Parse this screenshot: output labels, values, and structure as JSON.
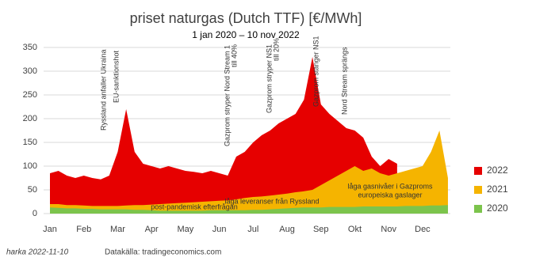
{
  "chart_data": {
    "type": "area",
    "title": "priset naturgas (Dutch TTF) [€/MWh]",
    "subtitle": "1 jan 2020 – 10 nov 2022",
    "categories": [
      "Jan",
      null,
      null,
      null,
      "Feb",
      null,
      null,
      null,
      "Mar",
      null,
      null,
      null,
      "Apr",
      null,
      null,
      null,
      "May",
      null,
      null,
      null,
      "Jun",
      null,
      null,
      null,
      "Jul",
      null,
      null,
      null,
      "Aug",
      null,
      null,
      null,
      "Sep",
      null,
      null,
      null,
      "Okt",
      null,
      null,
      null,
      "Nov",
      null,
      null,
      null,
      "Dec",
      null,
      null,
      null
    ],
    "series": [
      {
        "name": "2022",
        "color": "#e60000",
        "values": [
          85,
          90,
          80,
          75,
          80,
          75,
          72,
          80,
          130,
          220,
          130,
          105,
          100,
          95,
          100,
          95,
          90,
          88,
          85,
          90,
          85,
          80,
          120,
          130,
          150,
          165,
          175,
          190,
          200,
          210,
          240,
          330,
          230,
          210,
          195,
          180,
          175,
          160,
          120,
          100,
          115,
          105,
          null,
          null,
          null,
          null,
          null,
          null
        ]
      },
      {
        "name": "2021",
        "color": "#f5b400",
        "values": [
          20,
          20,
          18,
          18,
          17,
          16,
          16,
          16,
          16,
          17,
          18,
          18,
          19,
          20,
          21,
          22,
          23,
          24,
          25,
          26,
          27,
          28,
          30,
          33,
          35,
          36,
          38,
          40,
          42,
          45,
          47,
          50,
          60,
          70,
          80,
          90,
          100,
          90,
          95,
          85,
          80,
          85,
          90,
          95,
          100,
          130,
          175,
          75
        ]
      },
      {
        "name": "2020",
        "color": "#7cc44c",
        "values": [
          13,
          12,
          11,
          11,
          10,
          10,
          9,
          9,
          9,
          9,
          8,
          8,
          7,
          6,
          6,
          6,
          6,
          6,
          6,
          7,
          7,
          7,
          7,
          7,
          8,
          8,
          9,
          10,
          11,
          12,
          13,
          13,
          13,
          14,
          14,
          14,
          14,
          15,
          15,
          15,
          15,
          15,
          16,
          16,
          16,
          17,
          17,
          18
        ]
      }
    ],
    "ylim": [
      0,
      350
    ],
    "yticks": [
      0,
      50,
      100,
      150,
      200,
      250,
      300,
      350
    ],
    "grid": true,
    "annotations": [
      "Ryssland anfaller Ukraina",
      "EU-sanktionshot",
      "Gazprom stryper Nord Stream 1",
      "till 40%",
      "Gazprom stryper NS1",
      "till 20%",
      "Gazprom stänger NS1",
      "Nord Stream sprängs",
      "post-pandemisk efterfrågan",
      "låga leveranser från Ryssland",
      "låga gasnivåer i Gazproms",
      "europeiska gaslager"
    ],
    "footer": [
      "harka 2022-11-10",
      "Datakälla: tradingeconomics.com"
    ]
  }
}
